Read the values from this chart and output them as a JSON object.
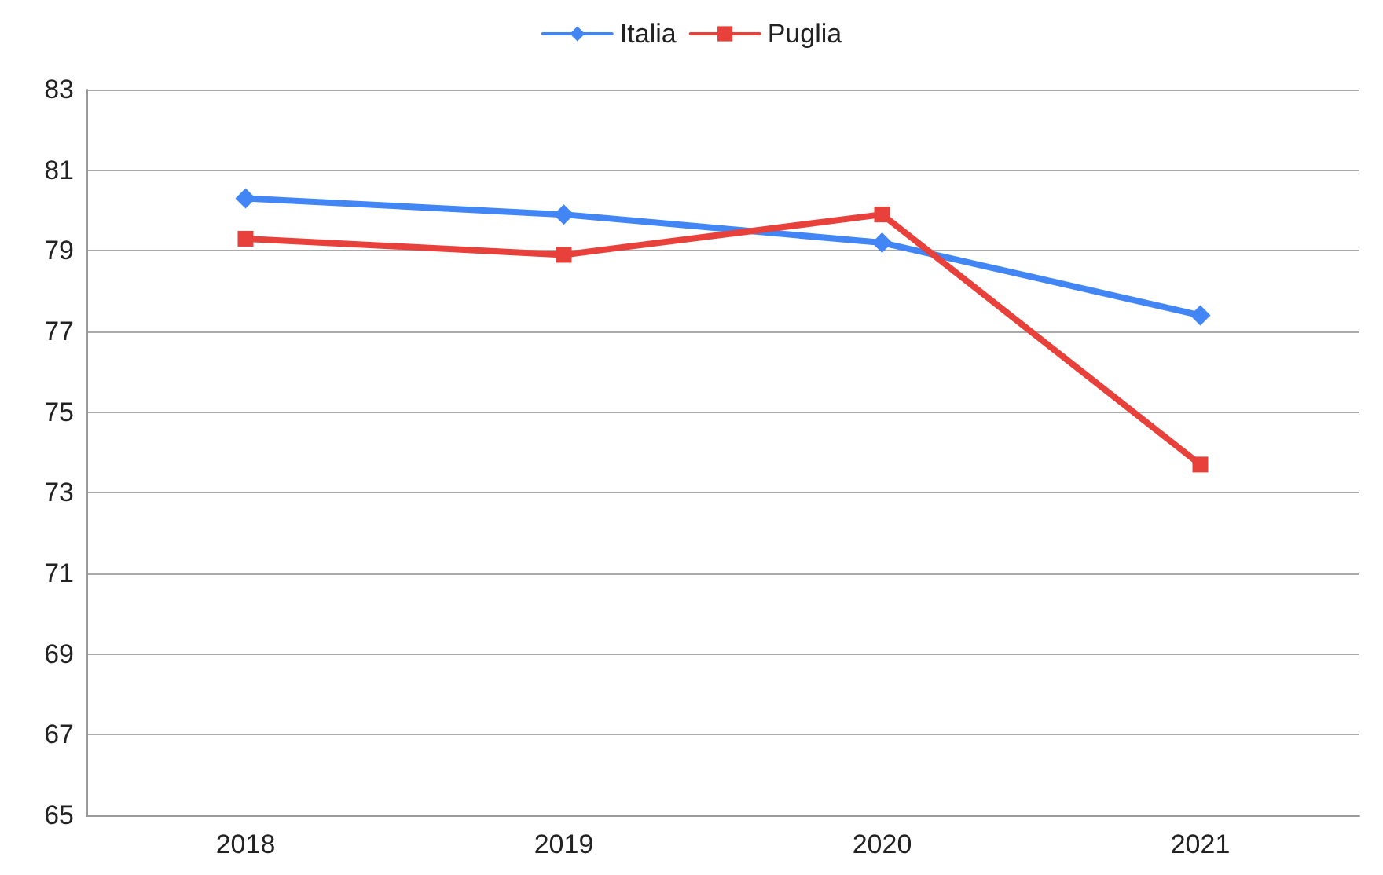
{
  "chart_data": {
    "type": "line",
    "categories": [
      "2018",
      "2019",
      "2020",
      "2021"
    ],
    "series": [
      {
        "name": "Italia",
        "color": "#4285f4",
        "marker": "diamond",
        "values": [
          80.3,
          79.9,
          79.2,
          77.4
        ]
      },
      {
        "name": "Puglia",
        "color": "#e8403a",
        "marker": "square",
        "values": [
          79.3,
          78.9,
          79.9,
          73.7
        ]
      }
    ],
    "ylim": [
      65,
      83
    ],
    "yticks": [
      65,
      67,
      69,
      71,
      73,
      75,
      77,
      79,
      81,
      83
    ],
    "grid": "y",
    "legend": "top"
  }
}
